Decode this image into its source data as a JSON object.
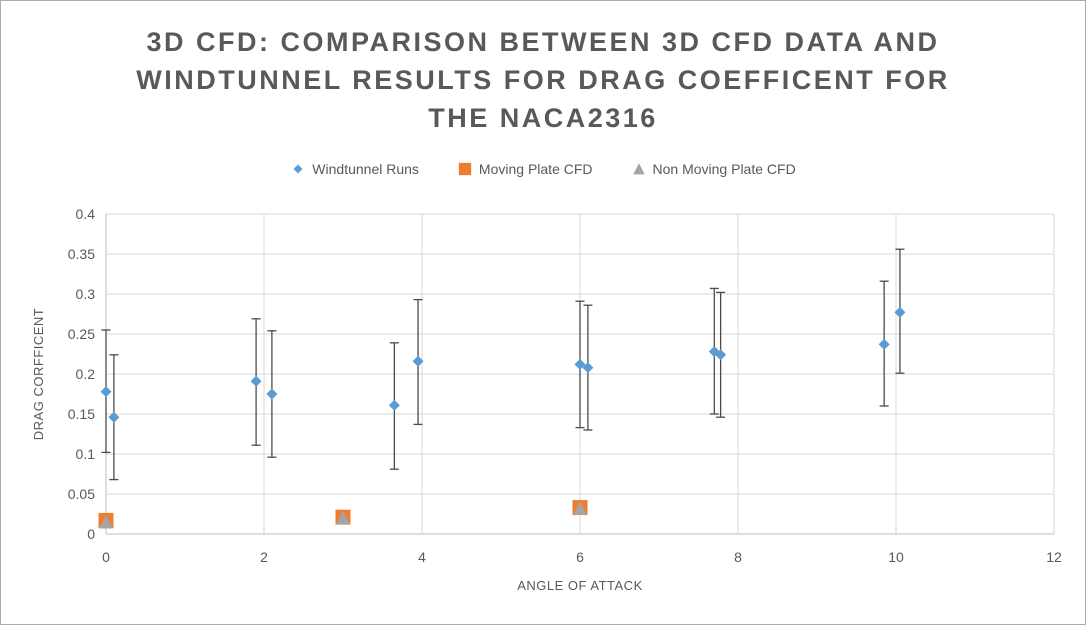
{
  "window": {
    "background": "#FFFFFF",
    "border_color": "#ABABAB"
  },
  "colors": {
    "title_text": "#595959",
    "axis_text": "#595959",
    "gridline": "#D9D9D9",
    "axis_line": "#BFBFBF",
    "error_bar": "#4A4A4A",
    "series_blue": "#5B9BD5",
    "series_orange": "#ED7D31",
    "series_gray": "#A5A5A5"
  },
  "chart_data": {
    "type": "scatter",
    "title": "3D CFD: COMPARISON BETWEEN 3D CFD DATA AND WINDTUNNEL RESULTS FOR DRAG COEFFICENT FOR THE NACA2316",
    "title_lines": [
      "3D CFD: COMPARISON BETWEEN 3D CFD DATA AND",
      "WINDTUNNEL RESULTS FOR DRAG COEFFICENT FOR",
      "THE NACA2316"
    ],
    "xlabel": "ANGLE OF ATTACK",
    "ylabel": "DRAG CORFFICENT",
    "xlim": [
      0,
      12
    ],
    "ylim": [
      0,
      0.4
    ],
    "xtick_values": [
      0,
      2,
      4,
      6,
      8,
      10,
      12
    ],
    "xtick_labels": [
      "0",
      "2",
      "4",
      "6",
      "8",
      "10",
      "12"
    ],
    "ytick_values": [
      0,
      0.05,
      0.1,
      0.15,
      0.2,
      0.25,
      0.3,
      0.35,
      0.4
    ],
    "ytick_labels": [
      "0",
      "0.05",
      "0.1",
      "0.15",
      "0.2",
      "0.25",
      "0.3",
      "0.35",
      "0.4"
    ],
    "grid": true,
    "legend_position": "top",
    "series": [
      {
        "name": "Windtunnel Runs",
        "marker": "diamond",
        "color": "#5B9BD5",
        "error_bars": true,
        "points": [
          {
            "x": 0.0,
            "y": 0.178,
            "err_low": 0.102,
            "err_high": 0.255
          },
          {
            "x": 0.1,
            "y": 0.146,
            "err_low": 0.068,
            "err_high": 0.224
          },
          {
            "x": 1.9,
            "y": 0.191,
            "err_low": 0.111,
            "err_high": 0.269
          },
          {
            "x": 2.1,
            "y": 0.175,
            "err_low": 0.096,
            "err_high": 0.254
          },
          {
            "x": 3.65,
            "y": 0.161,
            "err_low": 0.081,
            "err_high": 0.239
          },
          {
            "x": 3.95,
            "y": 0.216,
            "err_low": 0.137,
            "err_high": 0.293
          },
          {
            "x": 6.0,
            "y": 0.212,
            "err_low": 0.133,
            "err_high": 0.291
          },
          {
            "x": 6.1,
            "y": 0.208,
            "err_low": 0.13,
            "err_high": 0.286
          },
          {
            "x": 7.7,
            "y": 0.228,
            "err_low": 0.15,
            "err_high": 0.307
          },
          {
            "x": 7.78,
            "y": 0.224,
            "err_low": 0.146,
            "err_high": 0.302
          },
          {
            "x": 9.85,
            "y": 0.237,
            "err_low": 0.16,
            "err_high": 0.316
          },
          {
            "x": 10.05,
            "y": 0.277,
            "err_low": 0.201,
            "err_high": 0.356
          }
        ]
      },
      {
        "name": "Moving Plate CFD",
        "marker": "square",
        "color": "#ED7D31",
        "error_bars": false,
        "points": [
          {
            "x": 0,
            "y": 0.017
          },
          {
            "x": 3,
            "y": 0.021
          },
          {
            "x": 6,
            "y": 0.033
          }
        ]
      },
      {
        "name": "Non Moving Plate CFD",
        "marker": "triangle",
        "color": "#A5A5A5",
        "error_bars": false,
        "points": [
          {
            "x": 0,
            "y": 0.015
          },
          {
            "x": 3,
            "y": 0.02
          },
          {
            "x": 6,
            "y": 0.032
          }
        ]
      }
    ]
  }
}
